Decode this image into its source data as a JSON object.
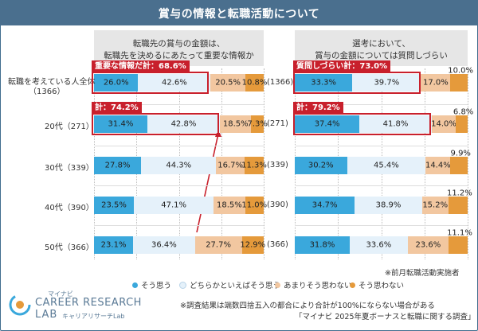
{
  "title": "賞与の情報と転職活動について",
  "left_header_line1": "転職先の賞与の金額は、",
  "left_header_line2": "転職先を決めるにあたって重要な情報か",
  "right_header_line1": "選考において、",
  "right_header_line2": "賞与の金額については質問しづらい",
  "colors": {
    "c1": "#3aa8dc",
    "c2": "#e5f1fa",
    "c3": "#f2c7a0",
    "c4": "#e59a3b",
    "highlight": "#c8202c",
    "header_bg": "#4a6f8e"
  },
  "chart_data": [
    {
      "type": "bar",
      "stacked": true,
      "orientation": "horizontal",
      "title": "転職先の賞与の金額は、転職先を決めるにあたって重要な情報か",
      "categories": [
        "転職を考えている人全体（1366）",
        "20代（271）",
        "30代（339）",
        "40代（390）",
        "50代（366）"
      ],
      "series": [
        {
          "name": "そう思う",
          "values": [
            26.0,
            31.4,
            27.8,
            23.5,
            23.1
          ]
        },
        {
          "name": "どちらかといえばそう思う",
          "values": [
            42.6,
            42.8,
            44.3,
            47.1,
            36.4
          ]
        },
        {
          "name": "あまりそう思わない",
          "values": [
            20.5,
            18.5,
            16.7,
            18.5,
            27.7
          ]
        },
        {
          "name": "そう思わない",
          "values": [
            10.8,
            7.3,
            11.3,
            11.0,
            12.9
          ]
        }
      ],
      "annotations": [
        "重要な情報だ計：68.6%",
        "計：74.2%"
      ]
    },
    {
      "type": "bar",
      "stacked": true,
      "orientation": "horizontal",
      "title": "選考において、賞与の金額については質問しづらい",
      "categories": [
        "(1366)",
        "(271)",
        "(339)",
        "(390)",
        "(366)"
      ],
      "series": [
        {
          "name": "そう思う",
          "values": [
            33.3,
            37.4,
            30.2,
            34.7,
            31.8
          ]
        },
        {
          "name": "どちらかといえばそう思う",
          "values": [
            39.7,
            41.8,
            45.4,
            38.9,
            33.6
          ]
        },
        {
          "name": "あまりそう思わない",
          "values": [
            17.0,
            14.0,
            14.4,
            15.2,
            23.6
          ]
        },
        {
          "name": "そう思わない",
          "values": [
            10.0,
            6.8,
            9.9,
            11.2,
            11.1
          ]
        }
      ],
      "annotations": [
        "質問しづらい計：73.0%",
        "計：79.2%"
      ]
    }
  ],
  "left_rows": [
    {
      "label_a": "転職を考えている人全体",
      "label_b": "（1366）",
      "v": [
        "26.0%",
        "42.6%",
        "20.5%",
        "10.8%"
      ]
    },
    {
      "label_a": "20代（271）",
      "label_b": "",
      "v": [
        "31.4%",
        "42.8%",
        "18.5%",
        "7.3%"
      ]
    },
    {
      "label_a": "30代（339）",
      "label_b": "",
      "v": [
        "27.8%",
        "44.3%",
        "16.7%",
        "11.3%"
      ]
    },
    {
      "label_a": "40代（390）",
      "label_b": "",
      "v": [
        "23.5%",
        "47.1%",
        "18.5%",
        "11.0%"
      ]
    },
    {
      "label_a": "50代（366）",
      "label_b": "",
      "v": [
        "23.1%",
        "36.4%",
        "27.7%",
        "12.9%"
      ]
    }
  ],
  "right_rows": [
    {
      "label": "(1366)",
      "v": [
        "33.3%",
        "39.7%",
        "17.0%",
        "10.0%"
      ]
    },
    {
      "label": "(271)",
      "v": [
        "37.4%",
        "41.8%",
        "14.0%",
        "6.8%"
      ]
    },
    {
      "label": "(339)",
      "v": [
        "30.2%",
        "45.4%",
        "14.4%",
        "9.9%"
      ]
    },
    {
      "label": "(390)",
      "v": [
        "34.7%",
        "38.9%",
        "15.2%",
        "11.2%"
      ]
    },
    {
      "label": "(366)",
      "v": [
        "31.8%",
        "33.6%",
        "23.6%",
        "11.1%"
      ]
    }
  ],
  "highlights": {
    "left_all": "重要な情報だ計：68.6%",
    "left_20": "計：74.2%",
    "right_all": "質問しづらい計：73.0%",
    "right_20": "計：79.2%"
  },
  "legend": [
    "そう思う",
    "どちらかといえばそう思う",
    "あまりそう思わない",
    "そう思わない"
  ],
  "note_prev": "※前月転職活動実施者",
  "footnote_line1": "※調査結果は端数四捨五入の都合により合計が100%にならない場合がある",
  "footnote_line2": "「マイナビ 2025年夏ボーナスと転職に関する調査」",
  "logo": {
    "mynavi": "マイナビ",
    "career": "CAREER RESEARCH",
    "lab": "LAB",
    "kana": "キャリアリサーチLab"
  }
}
